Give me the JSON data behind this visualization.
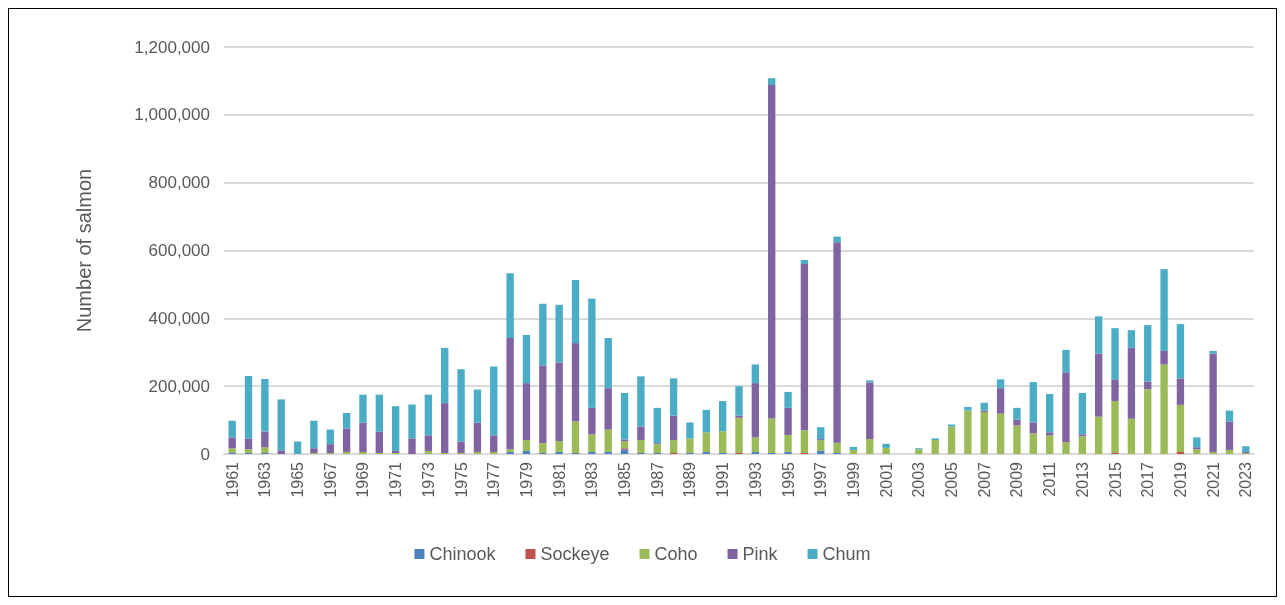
{
  "chart_data": {
    "type": "bar",
    "stacked": true,
    "ylabel": "Number of salmon",
    "categories": [
      "1961",
      null,
      "1963",
      null,
      "1965",
      null,
      "1967",
      null,
      "1969",
      null,
      "1971",
      null,
      "1973",
      null,
      "1975",
      null,
      "1977",
      null,
      "1979",
      null,
      "1981",
      null,
      "1983",
      null,
      "1985",
      null,
      "1987",
      null,
      "1989",
      null,
      "1991",
      null,
      "1993",
      null,
      "1995",
      null,
      "1997",
      null,
      "1999",
      null,
      "2001",
      null,
      "2003",
      null,
      "2005",
      null,
      "2007",
      null,
      "2009",
      null,
      "2011",
      null,
      "2013",
      null,
      "2015",
      null,
      "2017",
      null,
      "2019",
      null,
      "2021",
      null,
      "2023"
    ],
    "series": [
      {
        "name": "Chinook",
        "color": "#4f81bd",
        "values": [
          3000,
          3000,
          3000,
          0,
          0,
          0,
          0,
          0,
          0,
          0,
          0,
          0,
          0,
          0,
          0,
          0,
          0,
          6000,
          9000,
          3000,
          6000,
          3000,
          6000,
          6000,
          14000,
          3000,
          3000,
          0,
          3000,
          6000,
          3000,
          0,
          6000,
          3000,
          7000,
          0,
          10000,
          3000,
          0,
          0,
          0,
          0,
          0,
          0,
          0,
          0,
          0,
          0,
          0,
          0,
          0,
          0,
          0,
          0,
          0,
          0,
          0,
          0,
          0,
          0,
          0,
          0,
          0
        ]
      },
      {
        "name": "Sockeye",
        "color": "#c0504d",
        "values": [
          0,
          0,
          0,
          0,
          0,
          0,
          0,
          0,
          0,
          0,
          0,
          0,
          0,
          0,
          0,
          0,
          0,
          0,
          0,
          0,
          0,
          0,
          0,
          0,
          3000,
          0,
          0,
          3000,
          0,
          0,
          0,
          3000,
          0,
          0,
          0,
          3000,
          0,
          0,
          0,
          0,
          0,
          0,
          0,
          0,
          0,
          0,
          0,
          0,
          0,
          0,
          0,
          0,
          0,
          0,
          3000,
          0,
          0,
          0,
          6000,
          0,
          0,
          0,
          0
        ]
      },
      {
        "name": "Coho",
        "color": "#9bbb59",
        "values": [
          14000,
          11000,
          17000,
          0,
          0,
          3000,
          3000,
          6000,
          6000,
          3000,
          3000,
          0,
          9000,
          3000,
          3000,
          6000,
          6000,
          8000,
          32000,
          29000,
          32000,
          93000,
          52000,
          66000,
          21000,
          38000,
          26000,
          38000,
          43000,
          58000,
          64000,
          104000,
          43000,
          102000,
          49000,
          67000,
          31000,
          30000,
          12000,
          44000,
          18000,
          0,
          14000,
          41000,
          81000,
          128000,
          124000,
          119000,
          84000,
          61000,
          55000,
          35000,
          52000,
          110000,
          153000,
          104000,
          191000,
          264000,
          139000,
          14000,
          6000,
          12000,
          3000
        ]
      },
      {
        "name": "Pink",
        "color": "#8064a2",
        "values": [
          32000,
          32000,
          46000,
          11000,
          0,
          14000,
          26000,
          69000,
          86000,
          63000,
          6000,
          46000,
          46000,
          147000,
          34000,
          86000,
          49000,
          328000,
          168000,
          229000,
          232000,
          231000,
          78000,
          122000,
          5000,
          40000,
          3000,
          72000,
          0,
          0,
          0,
          6000,
          160000,
          983000,
          80000,
          490000,
          3000,
          591000,
          0,
          167000,
          0,
          0,
          0,
          0,
          0,
          0,
          4000,
          75000,
          17000,
          32000,
          9000,
          206000,
          6000,
          186000,
          64000,
          209000,
          23000,
          40000,
          78000,
          6000,
          290000,
          84000,
          3000
        ]
      },
      {
        "name": "Chum",
        "color": "#4bacc6",
        "values": [
          49000,
          184000,
          155000,
          150000,
          37000,
          81000,
          43000,
          46000,
          83000,
          109000,
          132000,
          100000,
          120000,
          163000,
          213000,
          98000,
          203000,
          191000,
          142000,
          182000,
          170000,
          186000,
          322000,
          148000,
          137000,
          148000,
          104000,
          110000,
          47000,
          66000,
          89000,
          87000,
          55000,
          20000,
          47000,
          12000,
          35000,
          17000,
          9000,
          6000,
          12000,
          0,
          3000,
          5000,
          6000,
          11000,
          23000,
          26000,
          35000,
          119000,
          113000,
          66000,
          122000,
          110000,
          151000,
          52000,
          166000,
          241000,
          160000,
          29000,
          8000,
          32000,
          17000
        ]
      }
    ],
    "ylim": [
      0,
      1200000
    ],
    "yticks": [
      0,
      {
        "value": 200000,
        "label": "200,000"
      },
      {
        "value": 400000,
        "label": "400,000"
      },
      {
        "value": 600000,
        "label": "600,000"
      },
      {
        "value": 800000,
        "label": "800,000"
      },
      {
        "value": 1000000,
        "label": "1,000,000"
      },
      {
        "value": 1200000,
        "label": "1,200,000"
      }
    ],
    "grid": "y",
    "legend": "bottom"
  }
}
